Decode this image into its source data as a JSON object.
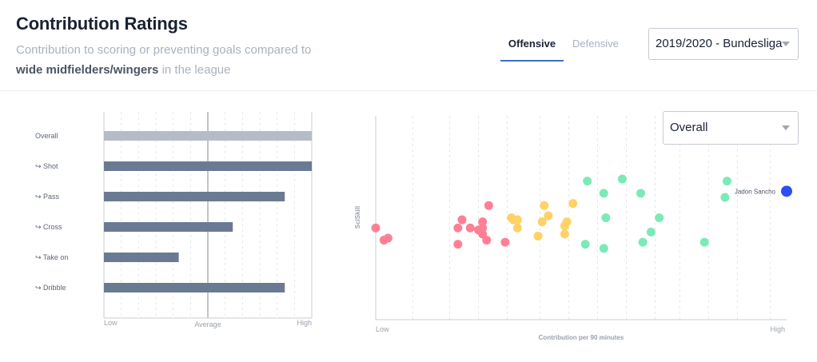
{
  "header": {
    "title": "Contribution Ratings",
    "subtitle_pre": "Contribution to scoring or preventing goals compared to",
    "subtitle_bold": "wide midfielders/wingers",
    "subtitle_post": "in the league"
  },
  "tabs": [
    {
      "label": "Offensive",
      "active": true
    },
    {
      "label": "Defensive",
      "active": false
    }
  ],
  "league_select": {
    "value": "2019/2020 - Bundesliga"
  },
  "metric_select": {
    "value": "Overall"
  },
  "colors": {
    "overall_bar": "#b6bcc7",
    "sub_bar": "#6b7a93",
    "low_group": "#ff7f95",
    "mid_group": "#ffd166",
    "high_group": "#7ceab6",
    "highlight": "#2b4ff2",
    "tab_underline": "#3d6fc9"
  },
  "bar_chart": {
    "axis": {
      "low": "Low",
      "average": "Average",
      "high": "High"
    },
    "rows": [
      {
        "label": "Overall",
        "value": 1.0,
        "kind": "overall"
      },
      {
        "label": "↪ Shot",
        "value": 1.0,
        "kind": "sub"
      },
      {
        "label": "↪ Pass",
        "value": 0.87,
        "kind": "sub"
      },
      {
        "label": "↪ Cross",
        "value": 0.62,
        "kind": "sub"
      },
      {
        "label": "↪ Take on",
        "value": 0.36,
        "kind": "sub"
      },
      {
        "label": "↪ Dribble",
        "value": 0.87,
        "kind": "sub"
      }
    ]
  },
  "chart_data": {
    "type": "scatter",
    "xlabel": "Contribution per 90 minutes",
    "ylabel": "SciSkill",
    "xaxis": {
      "low": "Low",
      "high": "High"
    },
    "xlim": [
      0,
      1
    ],
    "ylim": [
      0,
      1
    ],
    "highlight": {
      "label": "Jadon Sancho",
      "x": 1.0,
      "y": 0.63
    },
    "points": [
      {
        "x": 0.0,
        "y": 0.45,
        "group": "low"
      },
      {
        "x": 0.02,
        "y": 0.39,
        "group": "low"
      },
      {
        "x": 0.03,
        "y": 0.4,
        "group": "low"
      },
      {
        "x": 0.2,
        "y": 0.37,
        "group": "low"
      },
      {
        "x": 0.2,
        "y": 0.45,
        "group": "low"
      },
      {
        "x": 0.21,
        "y": 0.49,
        "group": "low"
      },
      {
        "x": 0.23,
        "y": 0.45,
        "group": "low"
      },
      {
        "x": 0.25,
        "y": 0.44,
        "group": "low"
      },
      {
        "x": 0.26,
        "y": 0.42,
        "group": "low"
      },
      {
        "x": 0.26,
        "y": 0.45,
        "group": "low"
      },
      {
        "x": 0.26,
        "y": 0.48,
        "group": "low"
      },
      {
        "x": 0.27,
        "y": 0.39,
        "group": "low"
      },
      {
        "x": 0.275,
        "y": 0.56,
        "group": "low"
      },
      {
        "x": 0.315,
        "y": 0.38,
        "group": "low"
      },
      {
        "x": 0.33,
        "y": 0.5,
        "group": "mid"
      },
      {
        "x": 0.335,
        "y": 0.49,
        "group": "mid"
      },
      {
        "x": 0.345,
        "y": 0.49,
        "group": "mid"
      },
      {
        "x": 0.345,
        "y": 0.45,
        "group": "mid"
      },
      {
        "x": 0.395,
        "y": 0.41,
        "group": "mid"
      },
      {
        "x": 0.405,
        "y": 0.48,
        "group": "mid"
      },
      {
        "x": 0.41,
        "y": 0.56,
        "group": "mid"
      },
      {
        "x": 0.42,
        "y": 0.51,
        "group": "mid"
      },
      {
        "x": 0.46,
        "y": 0.46,
        "group": "mid"
      },
      {
        "x": 0.465,
        "y": 0.48,
        "group": "mid"
      },
      {
        "x": 0.46,
        "y": 0.42,
        "group": "mid"
      },
      {
        "x": 0.48,
        "y": 0.57,
        "group": "mid"
      },
      {
        "x": 0.51,
        "y": 0.37,
        "group": "high"
      },
      {
        "x": 0.515,
        "y": 0.68,
        "group": "high"
      },
      {
        "x": 0.555,
        "y": 0.35,
        "group": "high"
      },
      {
        "x": 0.555,
        "y": 0.62,
        "group": "high"
      },
      {
        "x": 0.56,
        "y": 0.5,
        "group": "high"
      },
      {
        "x": 0.6,
        "y": 0.69,
        "group": "high"
      },
      {
        "x": 0.645,
        "y": 0.62,
        "group": "high"
      },
      {
        "x": 0.65,
        "y": 0.38,
        "group": "high"
      },
      {
        "x": 0.67,
        "y": 0.43,
        "group": "high"
      },
      {
        "x": 0.69,
        "y": 0.5,
        "group": "high"
      },
      {
        "x": 0.8,
        "y": 0.38,
        "group": "high"
      },
      {
        "x": 0.85,
        "y": 0.6,
        "group": "high"
      },
      {
        "x": 0.855,
        "y": 0.68,
        "group": "high"
      }
    ]
  }
}
